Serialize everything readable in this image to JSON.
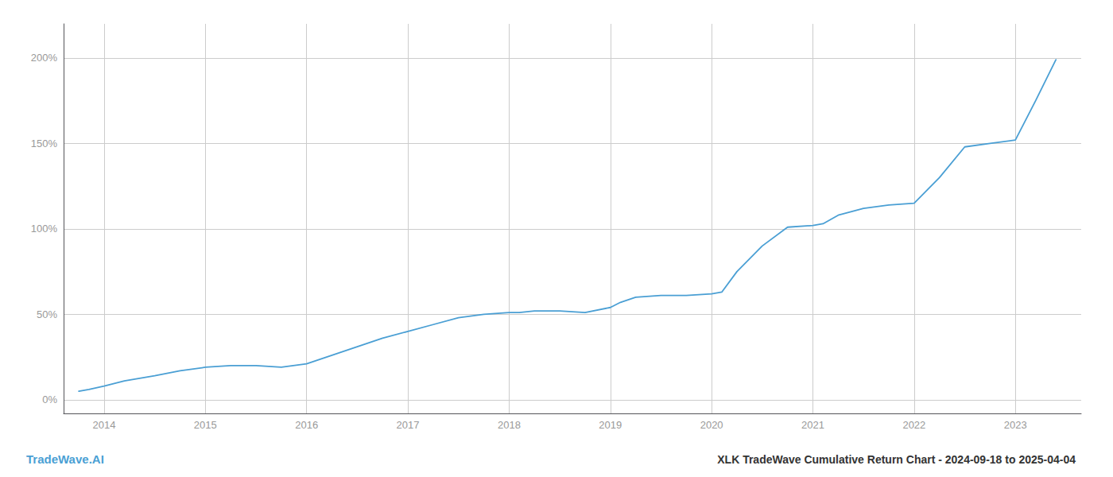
{
  "chart_data": {
    "type": "line",
    "title": "XLK TradeWave Cumulative Return Chart - 2024-09-18 to 2025-04-04",
    "annotations": [
      "TradeWave.AI"
    ],
    "color": "#4a9fd4",
    "grid": true,
    "x": [
      2013.75,
      2013.85,
      2014.0,
      2014.2,
      2014.5,
      2014.75,
      2015.0,
      2015.25,
      2015.5,
      2015.75,
      2016.0,
      2016.25,
      2016.5,
      2016.75,
      2017.0,
      2017.25,
      2017.5,
      2017.75,
      2018.0,
      2018.1,
      2018.25,
      2018.5,
      2018.75,
      2019.0,
      2019.1,
      2019.25,
      2019.5,
      2019.75,
      2020.0,
      2020.1,
      2020.25,
      2020.5,
      2020.75,
      2021.0,
      2021.1,
      2021.25,
      2021.5,
      2021.75,
      2022.0,
      2022.25,
      2022.5,
      2022.75,
      2023.0,
      2023.2,
      2023.4
    ],
    "values": [
      5,
      6,
      8,
      11,
      14,
      17,
      19,
      20,
      20,
      19,
      21,
      26,
      31,
      36,
      40,
      44,
      48,
      50,
      51,
      51,
      52,
      52,
      51,
      54,
      57,
      60,
      61,
      61,
      62,
      63,
      75,
      90,
      101,
      102,
      103,
      108,
      112,
      114,
      115,
      130,
      148,
      150,
      152,
      175,
      199
    ],
    "xlim": [
      2013.6,
      2023.65
    ],
    "xticks": [
      2014,
      2015,
      2016,
      2017,
      2018,
      2019,
      2020,
      2021,
      2022,
      2023
    ],
    "ylim": [
      -8,
      220
    ],
    "yticks": [
      {
        "value": 0,
        "label": "0%"
      },
      {
        "value": 50,
        "label": "50%"
      },
      {
        "value": 100,
        "label": "100%"
      },
      {
        "value": 150,
        "label": "150%"
      },
      {
        "value": 200,
        "label": "200%"
      }
    ]
  }
}
